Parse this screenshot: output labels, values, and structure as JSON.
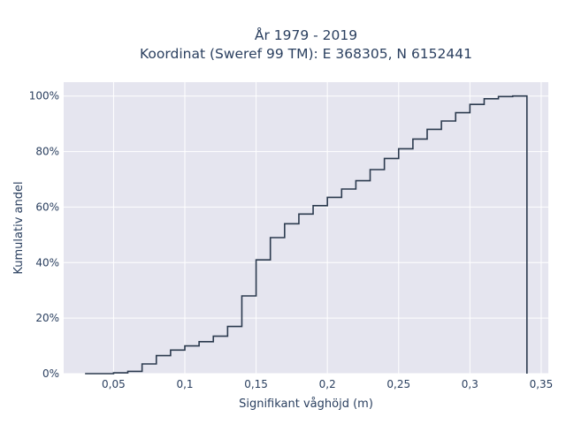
{
  "chart_data": {
    "type": "line",
    "title_lines": [
      "År 1979 - 2019",
      "Koordinat (Sweref 99 TM): E 368305, N 6152441"
    ],
    "xlabel": "Signifikant våghöjd (m)",
    "ylabel": "Kumulativ andel",
    "xlim": [
      0.015,
      0.355
    ],
    "ylim": [
      0,
      1.05
    ],
    "x_ticks": [
      {
        "value": 0.05,
        "label": "0,05"
      },
      {
        "value": 0.1,
        "label": "0,1"
      },
      {
        "value": 0.15,
        "label": "0,15"
      },
      {
        "value": 0.2,
        "label": "0,2"
      },
      {
        "value": 0.25,
        "label": "0,25"
      },
      {
        "value": 0.3,
        "label": "0,3"
      },
      {
        "value": 0.35,
        "label": "0,35"
      }
    ],
    "y_ticks": [
      {
        "value": 0,
        "label": "0%"
      },
      {
        "value": 0.2,
        "label": "20%"
      },
      {
        "value": 0.4,
        "label": "40%"
      },
      {
        "value": 0.6,
        "label": "60%"
      },
      {
        "value": 0.8,
        "label": "80%"
      },
      {
        "value": 1.0,
        "label": "100%"
      }
    ],
    "grid": true,
    "legend": false,
    "line_shape": "step",
    "colors": {
      "line": "#2b3a4e",
      "plot_bg": "#e5e5ef",
      "grid": "#ffffff"
    },
    "x": [
      0.03,
      0.05,
      0.06,
      0.07,
      0.08,
      0.09,
      0.1,
      0.11,
      0.12,
      0.13,
      0.14,
      0.15,
      0.16,
      0.17,
      0.18,
      0.19,
      0.2,
      0.21,
      0.22,
      0.23,
      0.24,
      0.25,
      0.26,
      0.27,
      0.28,
      0.29,
      0.3,
      0.31,
      0.32,
      0.33,
      0.34
    ],
    "y": [
      0.0,
      0.003,
      0.008,
      0.035,
      0.065,
      0.085,
      0.1,
      0.115,
      0.135,
      0.17,
      0.28,
      0.41,
      0.49,
      0.54,
      0.575,
      0.605,
      0.635,
      0.665,
      0.695,
      0.735,
      0.775,
      0.81,
      0.845,
      0.88,
      0.91,
      0.94,
      0.97,
      0.99,
      0.998,
      1.0,
      0.0
    ]
  }
}
